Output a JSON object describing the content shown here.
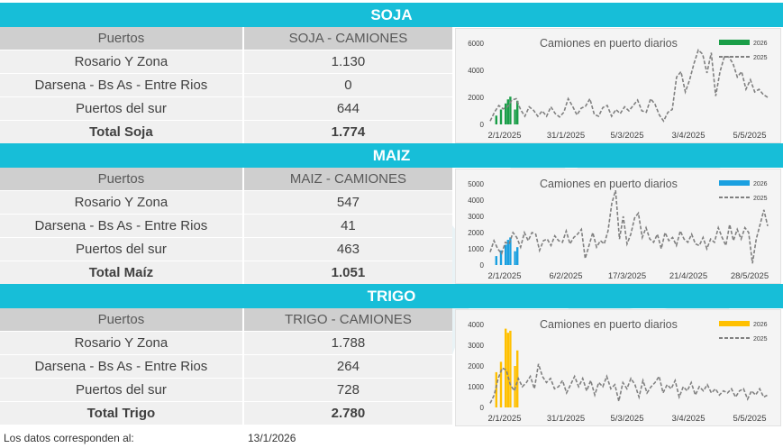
{
  "sections": [
    {
      "title": "SOJA",
      "col1_header": "Puertos",
      "col2_header": "SOJA - CAMIONES",
      "rows": [
        {
          "label": "Rosario Y Zona",
          "value": "1.130"
        },
        {
          "label": "Darsena - Bs As - Entre Rios",
          "value": "0"
        },
        {
          "label": "Puertos del sur",
          "value": "644"
        }
      ],
      "total_label": "Total Soja",
      "total_value": "1.774"
    },
    {
      "title": "MAIZ",
      "col1_header": "Puertos",
      "col2_header": "MAIZ - CAMIONES",
      "rows": [
        {
          "label": "Rosario Y Zona",
          "value": "547"
        },
        {
          "label": "Darsena - Bs As - Entre Rios",
          "value": "41"
        },
        {
          "label": "Puertos del sur",
          "value": "463"
        }
      ],
      "total_label": "Total Maíz",
      "total_value": "1.051"
    },
    {
      "title": "TRIGO",
      "col1_header": "Puertos",
      "col2_header": "TRIGO - CAMIONES",
      "rows": [
        {
          "label": "Rosario Y Zona",
          "value": "1.788"
        },
        {
          "label": "Darsena - Bs As - Entre Rios",
          "value": "264"
        },
        {
          "label": "Puertos del sur",
          "value": "728"
        }
      ],
      "total_label": "Total Trigo",
      "total_value": "2.780"
    }
  ],
  "footer": {
    "label": "Los datos corresponden al:",
    "date": "13/1/2026"
  },
  "chart_data": [
    {
      "type": "bar",
      "title": "Camiones en puerto diarios",
      "series": [
        {
          "name": "2026",
          "type": "bar",
          "color": "#1a9e48",
          "values": [
            0,
            650,
            0,
            1100,
            0,
            1550,
            1850,
            2050,
            0,
            1100,
            1750,
            0
          ]
        },
        {
          "name": "2025",
          "type": "line",
          "color": "#808080",
          "values": [
            250,
            900,
            1400,
            1150,
            1300,
            1800,
            1900,
            1100,
            600,
            1300,
            1050,
            600,
            1000,
            600,
            1300,
            800,
            550,
            900,
            1900,
            1350,
            700,
            1200,
            1350,
            1900,
            750,
            600,
            1250,
            1400,
            600,
            1100,
            800,
            1300,
            1000,
            1400,
            1800,
            1000,
            900,
            1900,
            1500,
            700,
            250,
            900,
            1100,
            3500,
            3900,
            2400,
            3300,
            4500,
            5500,
            5200,
            3800,
            5300,
            2100,
            3900,
            5000,
            5000,
            4500,
            3500,
            3900,
            2600,
            3300,
            2400,
            2600,
            2200,
            2000
          ]
        }
      ],
      "x_ticks": [
        "2/1/2025",
        "31/1/2025",
        "5/3/2025",
        "3/4/2025",
        "5/5/2025"
      ],
      "y_ticks": [
        0,
        2000,
        4000,
        6000
      ],
      "ylim": [
        0,
        6000
      ]
    },
    {
      "type": "bar",
      "title": "Camiones en puerto diarios",
      "series": [
        {
          "name": "2026",
          "type": "bar",
          "color": "#1aa0e0",
          "values": [
            0,
            550,
            0,
            900,
            0,
            1250,
            1550,
            1700,
            0,
            850,
            1100,
            0
          ]
        },
        {
          "name": "2025",
          "type": "line",
          "color": "#808080",
          "values": [
            800,
            1500,
            1000,
            700,
            1400,
            1300,
            2000,
            1700,
            1100,
            2000,
            1500,
            2000,
            1900,
            900,
            1500,
            1600,
            1200,
            1800,
            1500,
            1400,
            2100,
            1300,
            1700,
            1900,
            2200,
            400,
            1200,
            2000,
            1100,
            1500,
            1300,
            2100,
            3800,
            4600,
            1600,
            3000,
            1300,
            1900,
            2900,
            3200,
            1700,
            2300,
            1600,
            1400,
            1900,
            1000,
            2000,
            1500,
            1700,
            1200,
            2100,
            1600,
            1400,
            1900,
            1300,
            1200,
            1700,
            1000,
            1600,
            1400,
            2300,
            1700,
            1200,
            2500,
            1500,
            2200,
            1600,
            2300,
            2000,
            100,
            1600,
            2500,
            3400,
            2400
          ]
        }
      ],
      "x_ticks": [
        "2/1/2025",
        "6/2/2025",
        "17/3/2025",
        "21/4/2025",
        "28/5/2025"
      ],
      "y_ticks": [
        0,
        1000,
        2000,
        3000,
        4000,
        5000
      ],
      "ylim": [
        0,
        5000
      ]
    },
    {
      "type": "bar",
      "title": "Camiones en puerto diarios",
      "series": [
        {
          "name": "2026",
          "type": "bar",
          "color": "#ffc000",
          "values": [
            0,
            1700,
            0,
            2200,
            0,
            3800,
            3600,
            3700,
            0,
            2000,
            2750,
            0
          ]
        },
        {
          "name": "2025",
          "type": "line",
          "color": "#808080",
          "values": [
            200,
            600,
            1400,
            1900,
            1800,
            1100,
            800,
            1400,
            1000,
            1200,
            1500,
            900,
            2100,
            1500,
            1200,
            1400,
            900,
            1000,
            1300,
            700,
            1100,
            1500,
            1000,
            1400,
            800,
            1300,
            600,
            1200,
            1000,
            1500,
            900,
            1100,
            300,
            1200,
            900,
            1400,
            1100,
            500,
            1300,
            700,
            1000,
            1200,
            1500,
            700,
            1100,
            900,
            1300,
            500,
            1000,
            800,
            1200,
            600,
            1000,
            800,
            1100,
            700,
            900,
            600,
            800,
            700,
            900,
            500,
            800,
            900,
            400,
            800,
            600,
            900,
            500,
            600
          ]
        }
      ],
      "x_ticks": [
        "2/1/2025",
        "31/1/2025",
        "5/3/2025",
        "3/4/2025",
        "5/5/2025"
      ],
      "y_ticks": [
        0,
        1000,
        2000,
        3000,
        4000
      ],
      "ylim": [
        0,
        4000
      ]
    }
  ]
}
